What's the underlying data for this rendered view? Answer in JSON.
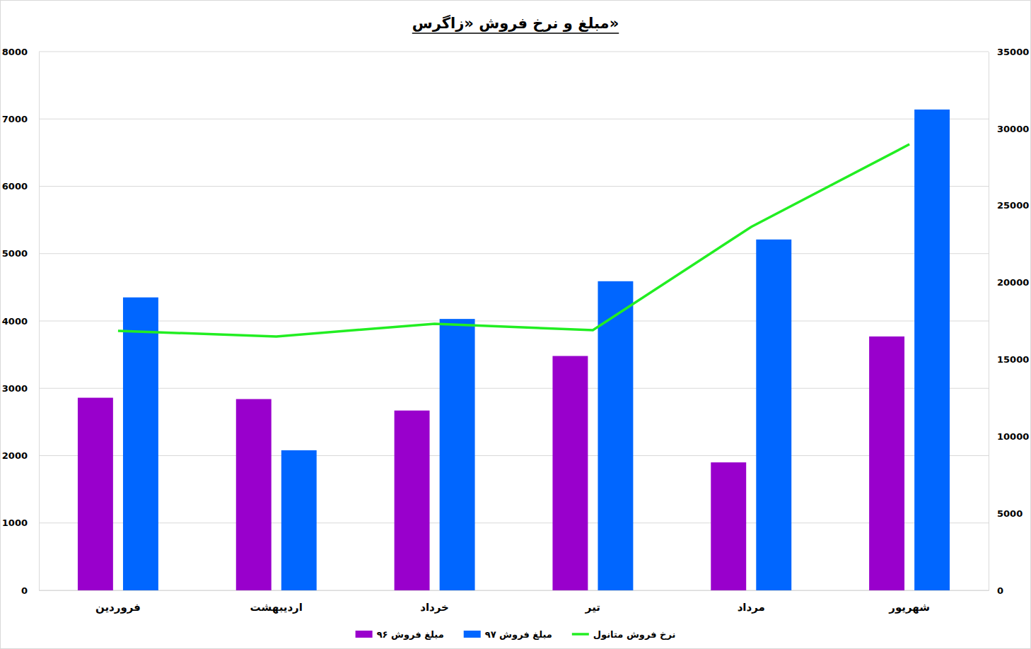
{
  "chart_data": {
    "type": "bar",
    "title": "مبلغ و نرخ فروش «زاگرس»",
    "categories": [
      "فروردین",
      "اردیبهشت",
      "خرداد",
      "تیر",
      "مرداد",
      "شهریور"
    ],
    "series": [
      {
        "name": "مبلغ فروش ۹۶",
        "color": "#9900cc",
        "values": [
          2860,
          2840,
          2670,
          3480,
          1900,
          3770
        ]
      },
      {
        "name": "مبلغ فروش ۹۷",
        "color": "#0066ff",
        "values": [
          4350,
          2080,
          4030,
          4590,
          5210,
          7140
        ]
      },
      {
        "name": "نرخ فروش متانول",
        "color": "#22ee22",
        "type": "line",
        "axis": "y2",
        "values": [
          16860,
          16490,
          17320,
          16900,
          23610,
          28980
        ]
      }
    ],
    "ylim": [
      0,
      8000
    ],
    "yticks": [
      0,
      1000,
      2000,
      3000,
      4000,
      5000,
      6000,
      7000,
      8000
    ],
    "y2lim": [
      0,
      35000
    ],
    "y2ticks": [
      0,
      5000,
      10000,
      15000,
      20000,
      25000,
      30000,
      35000
    ],
    "grid": true,
    "legend": "bottom"
  }
}
